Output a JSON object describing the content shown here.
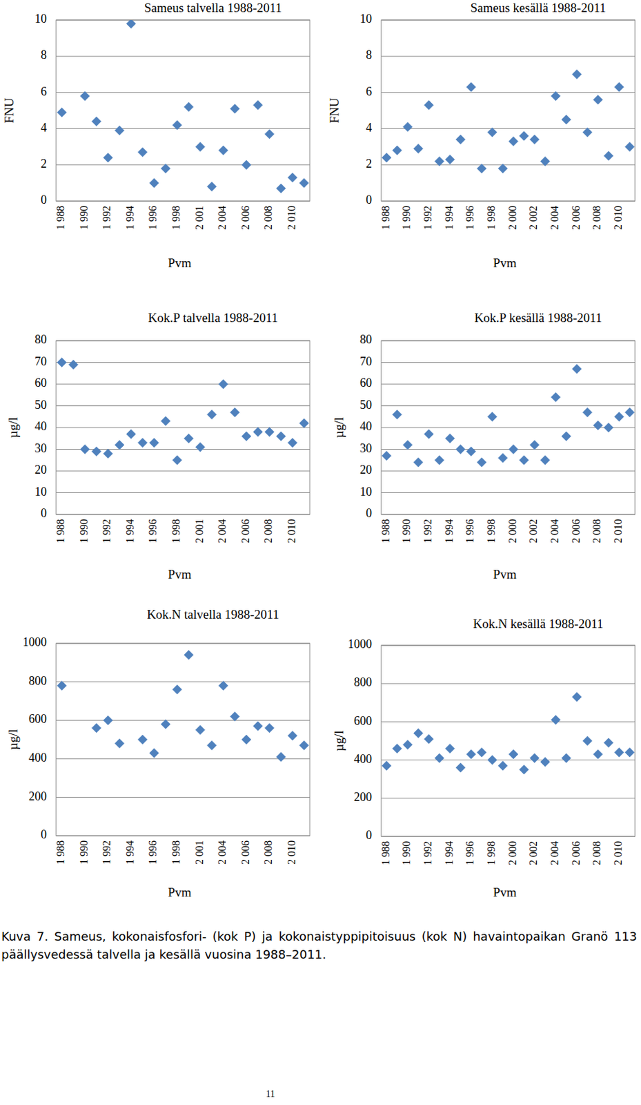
{
  "chart_data": [
    {
      "type": "scatter",
      "title": "Sameus  talvella 1988-2011",
      "xlabel": "Pvm",
      "ylabel": "FNU",
      "color": "#4f81bd",
      "marker": "diamond",
      "grid": true,
      "categories": [
        "1 988",
        null,
        "1 990",
        null,
        "1 992",
        null,
        "1 994",
        null,
        "1 996",
        null,
        "1 998",
        null,
        "2 001",
        null,
        "2 004",
        null,
        "2 006",
        null,
        "2 008",
        null,
        "2 010",
        null
      ],
      "values": [
        4.9,
        null,
        5.8,
        4.4,
        2.4,
        3.9,
        9.8,
        2.7,
        1.0,
        1.8,
        4.2,
        5.2,
        3.0,
        0.8,
        2.8,
        5.1,
        2.0,
        5.3,
        3.7,
        0.7,
        1.3,
        1.0
      ],
      "ylim": [
        0,
        10
      ],
      "yticks": [
        0,
        2,
        4,
        6,
        8,
        10
      ]
    },
    {
      "type": "scatter",
      "title": "Sameus kesällä 1988-2011",
      "xlabel": "Pvm",
      "ylabel": "FNU",
      "color": "#4f81bd",
      "marker": "diamond",
      "grid": true,
      "categories": [
        "1 988",
        null,
        "1 990",
        null,
        "1 992",
        null,
        "1 994",
        null,
        "1 996",
        null,
        "1 998",
        null,
        "2 000",
        null,
        "2 002",
        null,
        "2 004",
        null,
        "2 006",
        null,
        "2 008",
        null,
        "2 010",
        null
      ],
      "values": [
        2.4,
        2.8,
        4.1,
        2.9,
        5.3,
        2.2,
        2.3,
        3.4,
        6.3,
        1.8,
        3.8,
        1.8,
        3.3,
        3.6,
        3.4,
        2.2,
        5.8,
        4.5,
        7.0,
        3.8,
        5.6,
        2.5,
        6.3,
        3.0
      ],
      "ylim": [
        0,
        10
      ],
      "yticks": [
        0,
        2,
        4,
        6,
        8,
        10
      ]
    },
    {
      "type": "scatter",
      "title": "Kok.P talvella 1988-2011",
      "xlabel": "Pvm",
      "ylabel": "µg/l",
      "color": "#4f81bd",
      "marker": "diamond",
      "grid": true,
      "categories": [
        "1 988",
        null,
        "1 990",
        null,
        "1 992",
        null,
        "1 994",
        null,
        "1 996",
        null,
        "1 998",
        null,
        "2 001",
        null,
        "2 004",
        null,
        "2 006",
        null,
        "2 008",
        null,
        "2 010",
        null
      ],
      "values": [
        70,
        69,
        30,
        29,
        28,
        32,
        37,
        33,
        33,
        43,
        25,
        35,
        31,
        46,
        60,
        47,
        36,
        38,
        38,
        36,
        33,
        42
      ],
      "ylim": [
        0,
        80
      ],
      "yticks": [
        0,
        10,
        20,
        30,
        40,
        50,
        60,
        70,
        80
      ]
    },
    {
      "type": "scatter",
      "title": "Kok.P kesällä 1988-2011",
      "xlabel": "Pvm",
      "ylabel": "µg/l",
      "color": "#4f81bd",
      "marker": "diamond",
      "grid": true,
      "categories": [
        "1 988",
        null,
        "1 990",
        null,
        "1 992",
        null,
        "1 994",
        null,
        "1 996",
        null,
        "1 998",
        null,
        "2 000",
        null,
        "2 002",
        null,
        "2 004",
        null,
        "2 006",
        null,
        "2 008",
        null,
        "2 010",
        null
      ],
      "values": [
        27,
        46,
        32,
        24,
        37,
        25,
        35,
        30,
        29,
        24,
        45,
        26,
        30,
        25,
        32,
        25,
        54,
        36,
        67,
        47,
        41,
        40,
        45,
        47
      ],
      "ylim": [
        0,
        80
      ],
      "yticks": [
        0,
        10,
        20,
        30,
        40,
        50,
        60,
        70,
        80
      ]
    },
    {
      "type": "scatter",
      "title": "Kok.N talvella 1988-2011",
      "xlabel": "Pvm",
      "ylabel": "µg/l",
      "color": "#4f81bd",
      "marker": "diamond",
      "grid": true,
      "categories": [
        "1 988",
        null,
        "1 990",
        null,
        "1 992",
        null,
        "1 994",
        null,
        "1 996",
        null,
        "1 998",
        null,
        "2 001",
        null,
        "2 004",
        null,
        "2 006",
        null,
        "2 008",
        null,
        "2 010",
        null
      ],
      "values": [
        780,
        null,
        null,
        560,
        600,
        480,
        null,
        500,
        430,
        580,
        760,
        940,
        550,
        470,
        780,
        620,
        500,
        570,
        560,
        410,
        520,
        470
      ],
      "ylim": [
        0,
        1000
      ],
      "yticks": [
        0,
        200,
        400,
        600,
        800,
        1000
      ]
    },
    {
      "type": "scatter",
      "title": "Kok.N kesällä 1988-2011",
      "xlabel": "Pvm",
      "ylabel": "µg/l",
      "color": "#4f81bd",
      "marker": "diamond",
      "grid": true,
      "categories": [
        "1 988",
        null,
        "1 990",
        null,
        "1 992",
        null,
        "1 994",
        null,
        "1 996",
        null,
        "1 998",
        null,
        "2 000",
        null,
        "2 002",
        null,
        "2 004",
        null,
        "2 006",
        null,
        "2 008",
        null,
        "2 010",
        null
      ],
      "values": [
        370,
        460,
        480,
        540,
        510,
        410,
        460,
        360,
        430,
        440,
        400,
        370,
        430,
        350,
        410,
        390,
        610,
        410,
        730,
        500,
        430,
        490,
        440,
        440
      ],
      "ylim": [
        0,
        1000
      ],
      "yticks": [
        0,
        200,
        400,
        600,
        800,
        1000
      ]
    }
  ],
  "caption": "Kuva 7. Sameus, kokonaisfosfori- (kok P) ja kokonaistyppipitoisuus (kok N) havaintopaikan Granö 113 päällysvedessä talvella ja kesällä vuosina 1988–2011.",
  "page_number": "11"
}
